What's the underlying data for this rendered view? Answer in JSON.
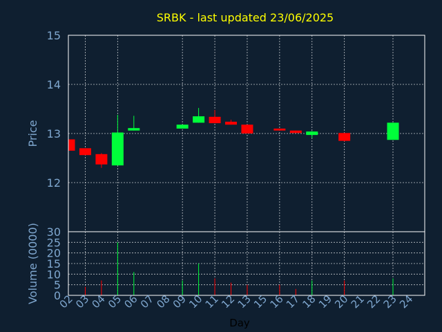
{
  "title": "SRBK - last updated 23/06/2025",
  "colors": {
    "background": "#0f1f30",
    "axis_text": "#7fa7cf",
    "title": "#ffff00",
    "grid": "#ffffff",
    "frame": "#ffffff",
    "up": "#00ff3a",
    "down": "#ff0000",
    "x_label": "#000000"
  },
  "chart_data": {
    "type": "candlestick",
    "price_panel": {
      "ylabel": "Price",
      "ylim": [
        11,
        15
      ],
      "yticks": [
        12,
        13,
        14,
        15
      ]
    },
    "volume_panel": {
      "ylabel": "Volume (0000)",
      "ylim": [
        0,
        30
      ],
      "yticks": [
        0,
        5,
        10,
        15,
        20,
        25,
        30
      ]
    },
    "xlabel": "Day",
    "x_tick_labels": [
      "02",
      "03",
      "04",
      "05",
      "06",
      "07",
      "08",
      "09",
      "10",
      "11",
      "12",
      "13",
      "15",
      "16",
      "17",
      "18",
      "19",
      "20",
      "21",
      "22",
      "23",
      "24"
    ],
    "x_grid_labels": [
      "03",
      "05",
      "09",
      "11",
      "13",
      "16",
      "18",
      "20",
      "23"
    ],
    "candles": [
      {
        "day": "02",
        "open": 12.88,
        "close": 12.65,
        "high": 12.88,
        "low": 12.65,
        "volume": 0
      },
      {
        "day": "03",
        "open": 12.7,
        "close": 12.56,
        "high": 12.7,
        "low": 12.56,
        "volume": 4
      },
      {
        "day": "04",
        "open": 12.58,
        "close": 12.37,
        "high": 12.6,
        "low": 12.3,
        "volume": 7
      },
      {
        "day": "05",
        "open": 12.35,
        "close": 13.02,
        "high": 13.38,
        "low": 12.35,
        "volume": 25
      },
      {
        "day": "06",
        "open": 13.06,
        "close": 13.11,
        "high": 13.36,
        "low": 13.06,
        "volume": 11
      },
      {
        "day": "09",
        "open": 13.1,
        "close": 13.18,
        "high": 13.18,
        "low": 13.1,
        "volume": 7
      },
      {
        "day": "10",
        "open": 13.22,
        "close": 13.35,
        "high": 13.52,
        "low": 13.22,
        "volume": 15
      },
      {
        "day": "11",
        "open": 13.34,
        "close": 13.21,
        "high": 13.48,
        "low": 13.21,
        "volume": 8
      },
      {
        "day": "12",
        "open": 13.24,
        "close": 13.18,
        "high": 13.28,
        "low": 13.18,
        "volume": 6
      },
      {
        "day": "13",
        "open": 13.18,
        "close": 13.0,
        "high": 13.18,
        "low": 13.0,
        "volume": 5
      },
      {
        "day": "16",
        "open": 13.1,
        "close": 13.06,
        "high": 13.1,
        "low": 13.06,
        "volume": 5
      },
      {
        "day": "17",
        "open": 13.06,
        "close": 13.01,
        "high": 13.06,
        "low": 13.01,
        "volume": 3
      },
      {
        "day": "18",
        "open": 12.97,
        "close": 13.04,
        "high": 13.05,
        "low": 12.91,
        "volume": 7
      },
      {
        "day": "20",
        "open": 13.01,
        "close": 12.85,
        "high": 13.01,
        "low": 12.84,
        "volume": 7
      },
      {
        "day": "23",
        "open": 12.87,
        "close": 13.22,
        "high": 13.22,
        "low": 12.87,
        "volume": 8
      }
    ]
  }
}
